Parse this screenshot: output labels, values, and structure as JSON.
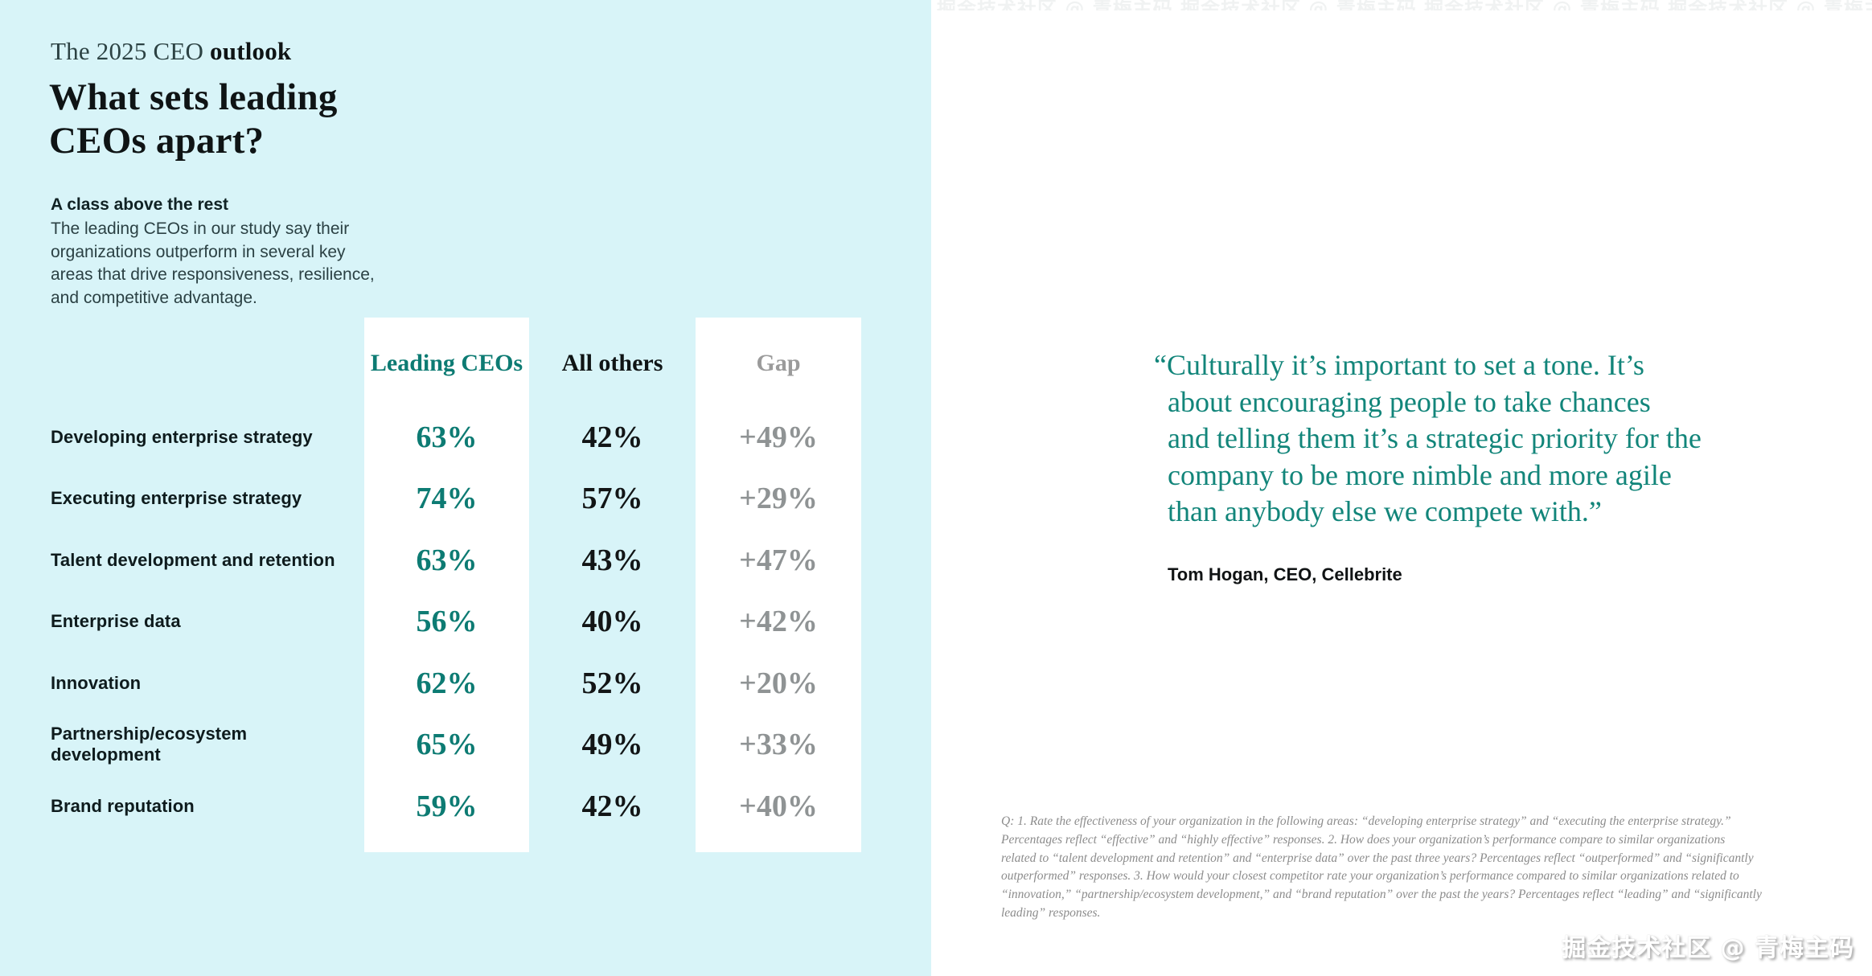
{
  "colors": {
    "panel_cyan": "#d8f4f8",
    "teal": "#0d7b73",
    "quote_teal": "#12857a",
    "dark": "#0f1415",
    "gap_gray": "#8f9394",
    "footnote_gray": "#8c8c8c"
  },
  "header": {
    "eyebrow_regular": "The 2025 CEO ",
    "eyebrow_bold": "outlook",
    "title_lines": [
      "What sets leading",
      "CEOs apart?"
    ]
  },
  "intro": {
    "heading": "A class above the rest",
    "body_lines": [
      "The leading CEOs in our study say their",
      "organizations outperform in several key",
      "areas that drive responsiveness, resilience,",
      "and competitive advantage."
    ]
  },
  "table": {
    "columns": [
      "Leading CEOs",
      "All others",
      "Gap"
    ],
    "rows": [
      {
        "label": "Developing enterprise strategy",
        "leading": "63%",
        "others": "42%",
        "gap": "+49%"
      },
      {
        "label": "Executing enterprise strategy",
        "leading": "74%",
        "others": "57%",
        "gap": "+29%"
      },
      {
        "label": "Talent development and retention",
        "leading": "63%",
        "others": "43%",
        "gap": "+47%"
      },
      {
        "label": "Enterprise data",
        "leading": "56%",
        "others": "40%",
        "gap": "+42%"
      },
      {
        "label": "Innovation",
        "leading": "62%",
        "others": "52%",
        "gap": "+20%"
      },
      {
        "label": "Partnership/ecosystem development",
        "leading": "65%",
        "others": "49%",
        "gap": "+33%"
      },
      {
        "label": "Brand reputation",
        "leading": "59%",
        "others": "42%",
        "gap": "+40%"
      }
    ]
  },
  "quote": {
    "lines": [
      "“Culturally it’s important to set a tone. It’s",
      "about encouraging people to take chances",
      "and telling them it’s a strategic priority for the",
      "company to be more nimble and more agile",
      "than anybody else we compete with.”"
    ],
    "attribution": "Tom Hogan, CEO, Cellebrite"
  },
  "footnote_lines": [
    "Q: 1. Rate the effectiveness of your organization in the following areas: “developing enterprise strategy” and “executing the enterprise strategy.”",
    "Percentages reflect “effective” and “highly effective” responses. 2. How does your organization’s performance compare to similar organizations",
    "related to “talent development and retention” and “enterprise data” over the past three years? Percentages reflect “outperformed” and “significantly",
    "outperformed” responses. 3. How would your closest competitor rate your organization’s performance compared to similar organizations related to",
    "“innovation,” “partnership/ecosystem development,” and “brand reputation” over the past the years? Percentages reflect “leading” and “significantly",
    "leading” responses."
  ],
  "watermark": "掘金技术社区 @ 青梅主码",
  "chart_data": {
    "type": "table",
    "title": "What sets leading CEOs apart?",
    "subtitle": "A class above the rest",
    "categories": [
      "Developing enterprise strategy",
      "Executing enterprise strategy",
      "Talent development and retention",
      "Enterprise data",
      "Innovation",
      "Partnership/ecosystem development",
      "Brand reputation"
    ],
    "series": [
      {
        "name": "Leading CEOs",
        "values": [
          63,
          74,
          63,
          56,
          62,
          65,
          59
        ],
        "unit": "%"
      },
      {
        "name": "All others",
        "values": [
          42,
          57,
          43,
          40,
          52,
          49,
          42
        ],
        "unit": "%"
      },
      {
        "name": "Gap",
        "values": [
          49,
          29,
          47,
          42,
          20,
          33,
          40
        ],
        "unit": "+%"
      }
    ]
  }
}
